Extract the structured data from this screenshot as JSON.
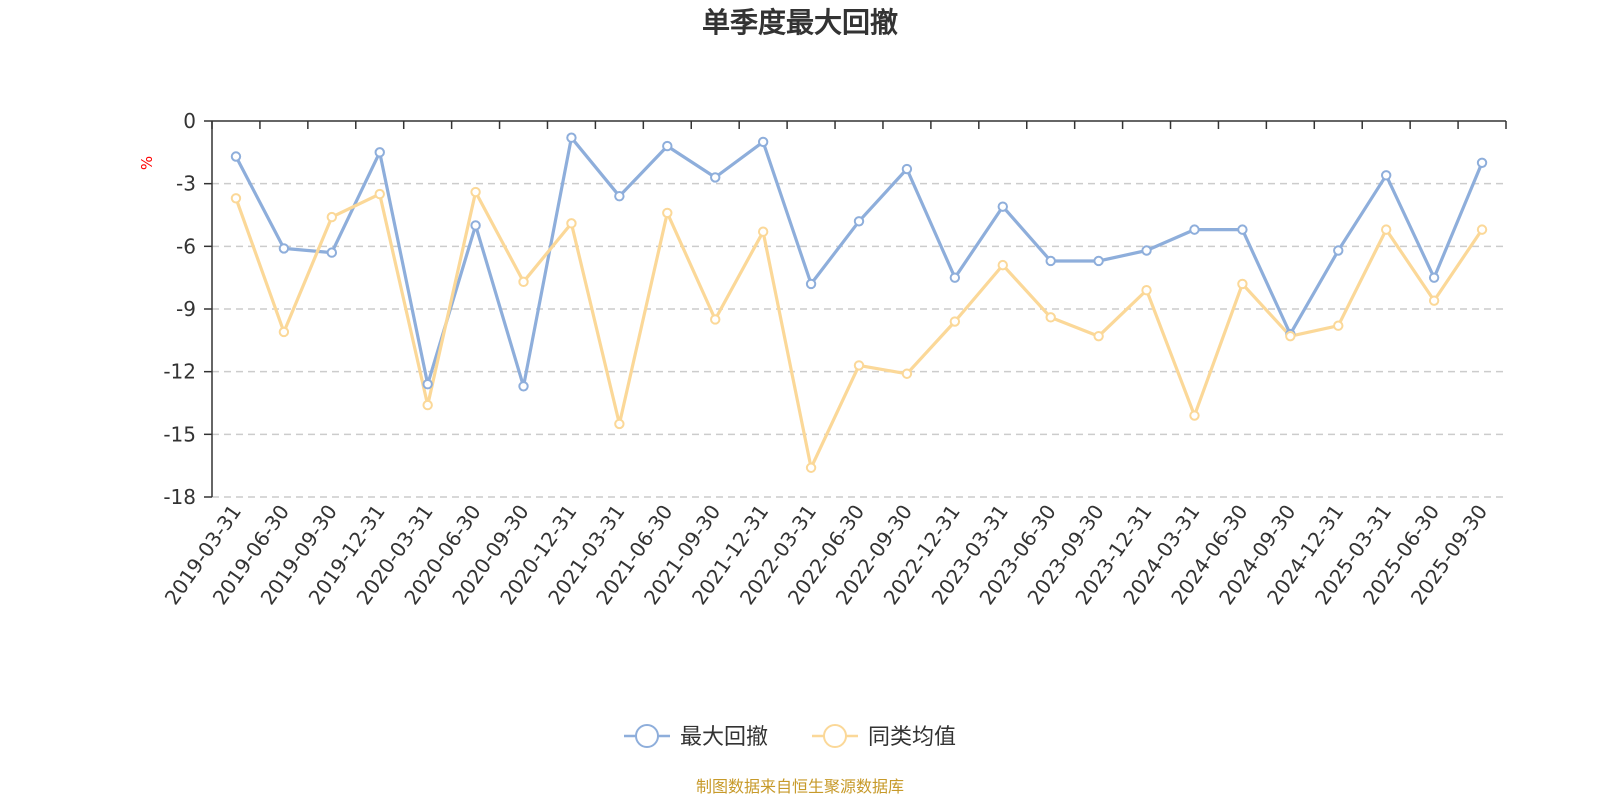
{
  "chart_data": {
    "type": "line",
    "title": "单季度最大回撤",
    "ylabel": "%",
    "ylim": [
      -18,
      0
    ],
    "yticks": [
      0,
      -3,
      -6,
      -9,
      -12,
      -15,
      -18
    ],
    "grid": true,
    "legend_placement": "bottom",
    "categories": [
      "2019-03-31",
      "2019-06-30",
      "2019-09-30",
      "2019-12-31",
      "2020-03-31",
      "2020-06-30",
      "2020-09-30",
      "2020-12-31",
      "2021-03-31",
      "2021-06-30",
      "2021-09-30",
      "2021-12-31",
      "2022-03-31",
      "2022-06-30",
      "2022-09-30",
      "2022-12-31",
      "2023-03-31",
      "2023-06-30",
      "2023-09-30",
      "2023-12-31",
      "2024-03-31",
      "2024-06-30",
      "2024-09-30",
      "2024-12-31",
      "2025-03-31",
      "2025-06-30",
      "2025-09-30"
    ],
    "series": [
      {
        "name": "最大回撤",
        "color": "#8eaedb",
        "values": [
          -1.7,
          -6.1,
          -6.3,
          -1.5,
          -12.6,
          -5.0,
          -12.7,
          -0.8,
          -3.6,
          -1.2,
          -2.7,
          -1.0,
          -7.8,
          -4.8,
          -2.3,
          -7.5,
          -4.1,
          -6.7,
          -6.7,
          -6.2,
          -5.2,
          -5.2,
          -10.2,
          -6.2,
          -2.6,
          -7.5,
          -2.0
        ]
      },
      {
        "name": "同类均值",
        "color": "#fbd898",
        "values": [
          -3.7,
          -10.1,
          -4.6,
          -3.5,
          -13.6,
          -3.4,
          -7.7,
          -4.9,
          -14.5,
          -4.4,
          -9.5,
          -5.3,
          -16.6,
          -11.7,
          -12.1,
          -9.6,
          -6.9,
          -9.4,
          -10.3,
          -8.1,
          -14.1,
          -7.8,
          -10.3,
          -9.8,
          -5.2,
          -8.6,
          -5.2
        ]
      }
    ],
    "source_note": "制图数据来自恒生聚源数据库"
  }
}
